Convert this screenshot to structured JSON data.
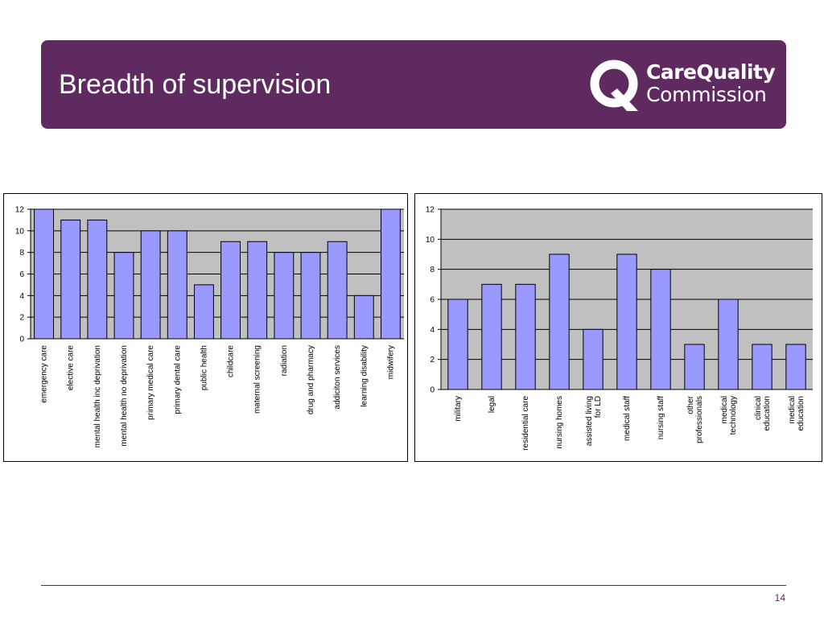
{
  "slide": {
    "title": "Breadth of supervision",
    "page_number": "14"
  },
  "logo": {
    "line1": "CareQuality",
    "line2": "Commission"
  },
  "colors": {
    "header": "#5e2a60",
    "bar_fill": "#9999ff",
    "plot_bg": "#c0c0c0"
  },
  "chart_data": [
    {
      "type": "bar",
      "categories": [
        "emergency care",
        "elective care",
        "mental health inc deprivation",
        "mental health no deprivation",
        "primary medical care",
        "primary dental care",
        "public health",
        "childcare",
        "maternal screening",
        "radiation",
        "drug and pharmacy",
        "addiciton services",
        "learning disability",
        "midwifery"
      ],
      "values": [
        12,
        11,
        11,
        8,
        10,
        10,
        5,
        9,
        9,
        8,
        8,
        9,
        4,
        12
      ],
      "ylim": [
        0,
        12
      ],
      "yticks": [
        0,
        2,
        4,
        6,
        8,
        10,
        12
      ],
      "grid": true,
      "legend": "none"
    },
    {
      "type": "bar",
      "categories": [
        "military",
        "legal",
        "residential care",
        "nursing homes",
        "assisted living for LD",
        "medical staff",
        "nursing staff",
        "other professionals",
        "medical technology",
        "clinical education",
        "medical education"
      ],
      "values": [
        6,
        7,
        7,
        9,
        4,
        9,
        8,
        3,
        6,
        3,
        3
      ],
      "ylim": [
        0,
        12
      ],
      "yticks": [
        0,
        2,
        4,
        6,
        8,
        10,
        12
      ],
      "grid": true,
      "legend": "none"
    }
  ]
}
